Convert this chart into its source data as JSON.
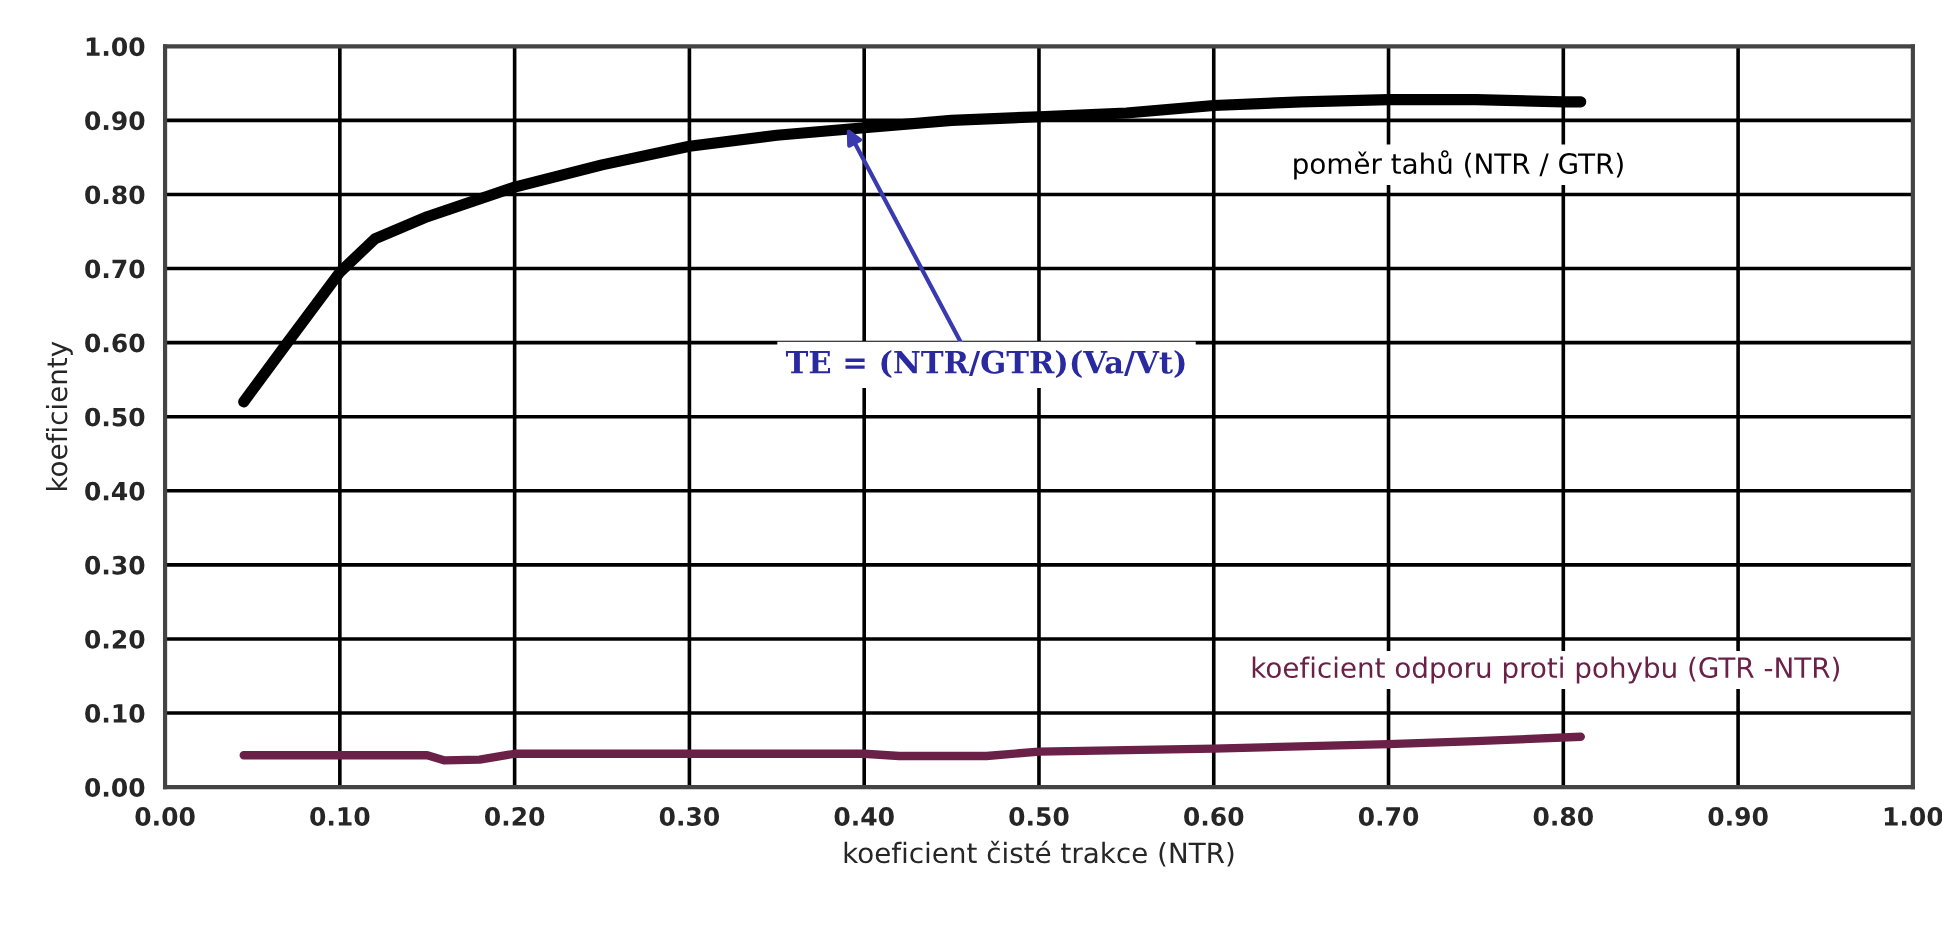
{
  "chart_data": {
    "type": "line",
    "xlabel": "koeficient čisté trakce (NTR)",
    "ylabel": "koeficienty",
    "xlim": [
      0,
      1
    ],
    "ylim": [
      0,
      1
    ],
    "xticks": [
      {
        "value": 0,
        "label": "0.00"
      },
      {
        "value": 0.1,
        "label": "0.10"
      },
      {
        "value": 0.2,
        "label": "0.20"
      },
      {
        "value": 0.3,
        "label": "0.30"
      },
      {
        "value": 0.4,
        "label": "0.40"
      },
      {
        "value": 0.5,
        "label": "0.50"
      },
      {
        "value": 0.6,
        "label": "0.60"
      },
      {
        "value": 0.7,
        "label": "0.70"
      },
      {
        "value": 0.8,
        "label": "0.80"
      },
      {
        "value": 0.9,
        "label": "0.90"
      },
      {
        "value": 1,
        "label": "1.00"
      }
    ],
    "yticks": [
      {
        "value": 0,
        "label": "0.00"
      },
      {
        "value": 0.1,
        "label": "0.10"
      },
      {
        "value": 0.2,
        "label": "0.20"
      },
      {
        "value": 0.3,
        "label": "0.30"
      },
      {
        "value": 0.4,
        "label": "0.40"
      },
      {
        "value": 0.5,
        "label": "0.50"
      },
      {
        "value": 0.6,
        "label": "0.60"
      },
      {
        "value": 0.7,
        "label": "0.70"
      },
      {
        "value": 0.8,
        "label": "0.80"
      },
      {
        "value": 0.9,
        "label": "0.90"
      },
      {
        "value": 1,
        "label": "1.00"
      }
    ],
    "grid": true,
    "legend": false,
    "marker": "none",
    "line_style": "solid",
    "series": [
      {
        "name": "poměr tahů (NTR / GTR)",
        "color": "#000000",
        "x": [
          0.045,
          0.07,
          0.1,
          0.12,
          0.15,
          0.2,
          0.25,
          0.3,
          0.35,
          0.4,
          0.45,
          0.5,
          0.55,
          0.6,
          0.65,
          0.7,
          0.75,
          0.8,
          0.81
        ],
        "values": [
          0.52,
          0.6,
          0.695,
          0.74,
          0.77,
          0.81,
          0.84,
          0.865,
          0.88,
          0.89,
          0.9,
          0.905,
          0.91,
          0.92,
          0.925,
          0.928,
          0.928,
          0.925,
          0.925
        ]
      },
      {
        "name": "koeficient odporu proti pohybu (GTR -NTR)",
        "color": "#6b2048",
        "x": [
          0.045,
          0.15,
          0.16,
          0.18,
          0.2,
          0.4,
          0.42,
          0.47,
          0.5,
          0.6,
          0.7,
          0.75,
          0.81
        ],
        "values": [
          0.043,
          0.043,
          0.036,
          0.037,
          0.045,
          0.045,
          0.042,
          0.042,
          0.048,
          0.052,
          0.058,
          0.062,
          0.068
        ]
      }
    ],
    "annotations": [
      {
        "text": "TE = (NTR/GTR)(Va/Vt)",
        "x": 0.39,
        "y": 0.89
      }
    ]
  }
}
